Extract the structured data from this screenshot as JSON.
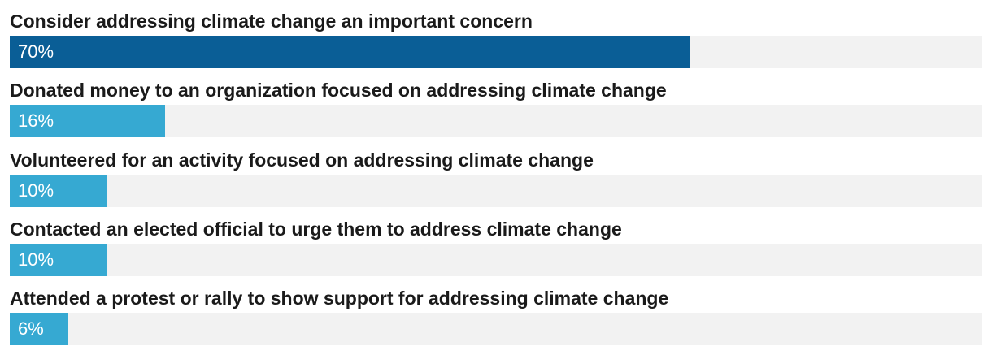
{
  "chart_data": {
    "type": "bar",
    "orientation": "horizontal",
    "categories": [
      "Consider addressing climate change an important concern",
      "Donated money to an organization focused on addressing climate change",
      "Volunteered for an activity focused on addressing climate change",
      "Contacted an elected official to urge them to address climate change",
      "Attended a protest or rally to show support for addressing climate change"
    ],
    "values": [
      70,
      16,
      10,
      10,
      6
    ],
    "value_labels": [
      "70%",
      "16%",
      "10%",
      "10%",
      "6%"
    ],
    "xlim": [
      0,
      100
    ],
    "unit": "%",
    "grid": false,
    "colors": {
      "highlight": "#0a5e96",
      "bar": "#36a9d2",
      "track": "#f2f2f2",
      "label": "#1a1a1a",
      "value_text": "#ffffff"
    }
  }
}
